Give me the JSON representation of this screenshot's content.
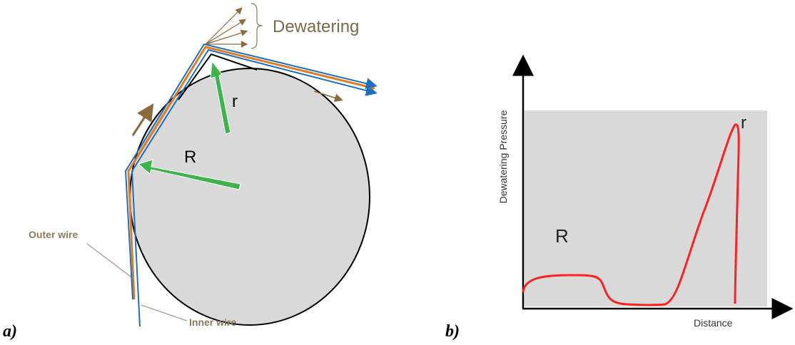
{
  "panel_a": {
    "label": "a)",
    "dewatering": "Dewatering",
    "small_radius": "r",
    "large_radius": "R",
    "outer_wire": "Outer wire",
    "inner_wire": "Inner wire"
  },
  "panel_b": {
    "label": "b)",
    "y_axis": "Dewatering Pressure",
    "x_axis": "Distance",
    "large_radius": "R",
    "small_radius": "r"
  }
}
